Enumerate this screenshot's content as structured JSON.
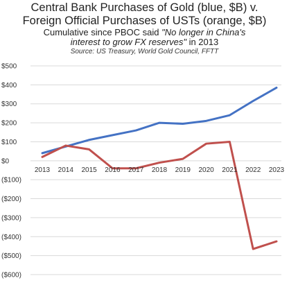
{
  "chart_data": {
    "type": "line",
    "title_lines": [
      "Central Bank Purchases of Gold (blue, $B) v.",
      "Foreign Official Purchases of USTs (orange, $B)"
    ],
    "subtitle": {
      "prefix": "Cumulative since PBOC said ",
      "quote_line1": "\"No longer in China's",
      "quote_line2": "interest to grow FX reserves\"",
      "suffix": " in 2013"
    },
    "source": "Source: US Treasury, World Gold Council, FFTT",
    "xlabel": "",
    "ylabel": "",
    "categories": [
      "2013",
      "2014",
      "2015",
      "2016",
      "2017",
      "2018",
      "2019",
      "2020",
      "2021",
      "2022",
      "2023"
    ],
    "y_tick_values": [
      500,
      400,
      300,
      200,
      100,
      0,
      -100,
      -200,
      -300,
      -400,
      -500,
      -600
    ],
    "y_tick_labels": [
      "$500",
      "$400",
      "$300",
      "$200",
      "$100",
      "$0",
      "($100)",
      "($200)",
      "($300)",
      "($400)",
      "($500)",
      "($600)"
    ],
    "ylim": [
      -600,
      500
    ],
    "grid": true,
    "legend": "none",
    "series": [
      {
        "color": "#4472C4",
        "values": [
          40,
          75,
          110,
          135,
          160,
          200,
          195,
          210,
          240,
          315,
          385
        ]
      },
      {
        "color": "#C0504D",
        "values": [
          20,
          80,
          60,
          -40,
          -40,
          -10,
          10,
          90,
          100,
          -465,
          -425
        ]
      }
    ]
  }
}
